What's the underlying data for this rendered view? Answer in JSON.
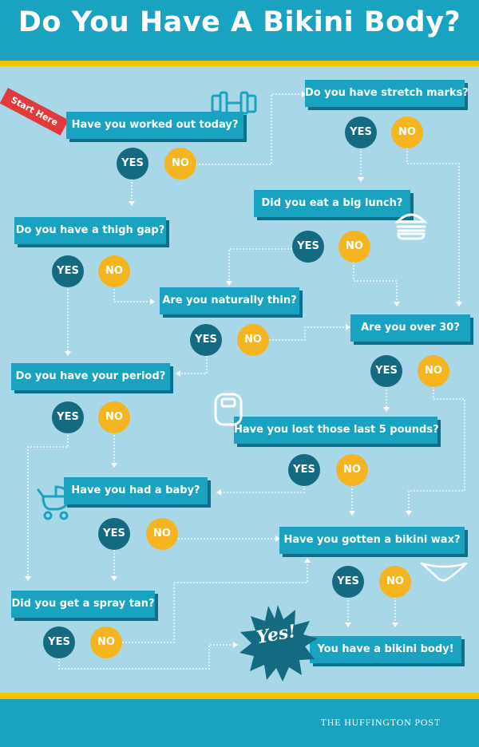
{
  "title": "Do You Have A Bikini Body?",
  "start_label": "Start Here",
  "footer": "THE HUFFINGTON POST",
  "answers": {
    "yes": "YES",
    "no": "NO"
  },
  "questions": {
    "worked_out": "Have you worked out today?",
    "stretch_marks": "Do you have stretch marks?",
    "big_lunch": "Did you eat a big lunch?",
    "thigh_gap": "Do you have a thigh gap?",
    "naturally_thin": "Are you naturally thin?",
    "over_30": "Are you over 30?",
    "period": "Do you have your period?",
    "last_5_pounds": "Have you lost those last 5 pounds?",
    "had_baby": "Have you had a baby?",
    "bikini_wax": "Have you gotten a bikini wax?",
    "spray_tan": "Did you get a spray tan?"
  },
  "result": {
    "burst": "Yes!",
    "text": "You have a bikini body!"
  },
  "icons": [
    "dumbbell-icon",
    "burger-icon",
    "scale-icon",
    "stroller-icon",
    "bikini-bottom-icon"
  ],
  "colors": {
    "header": "#1aa3c1",
    "stripe": "#f5c400",
    "background": "#a8d8e8",
    "yes": "#146a80",
    "no": "#f5b520",
    "start": "#e03a3a"
  }
}
